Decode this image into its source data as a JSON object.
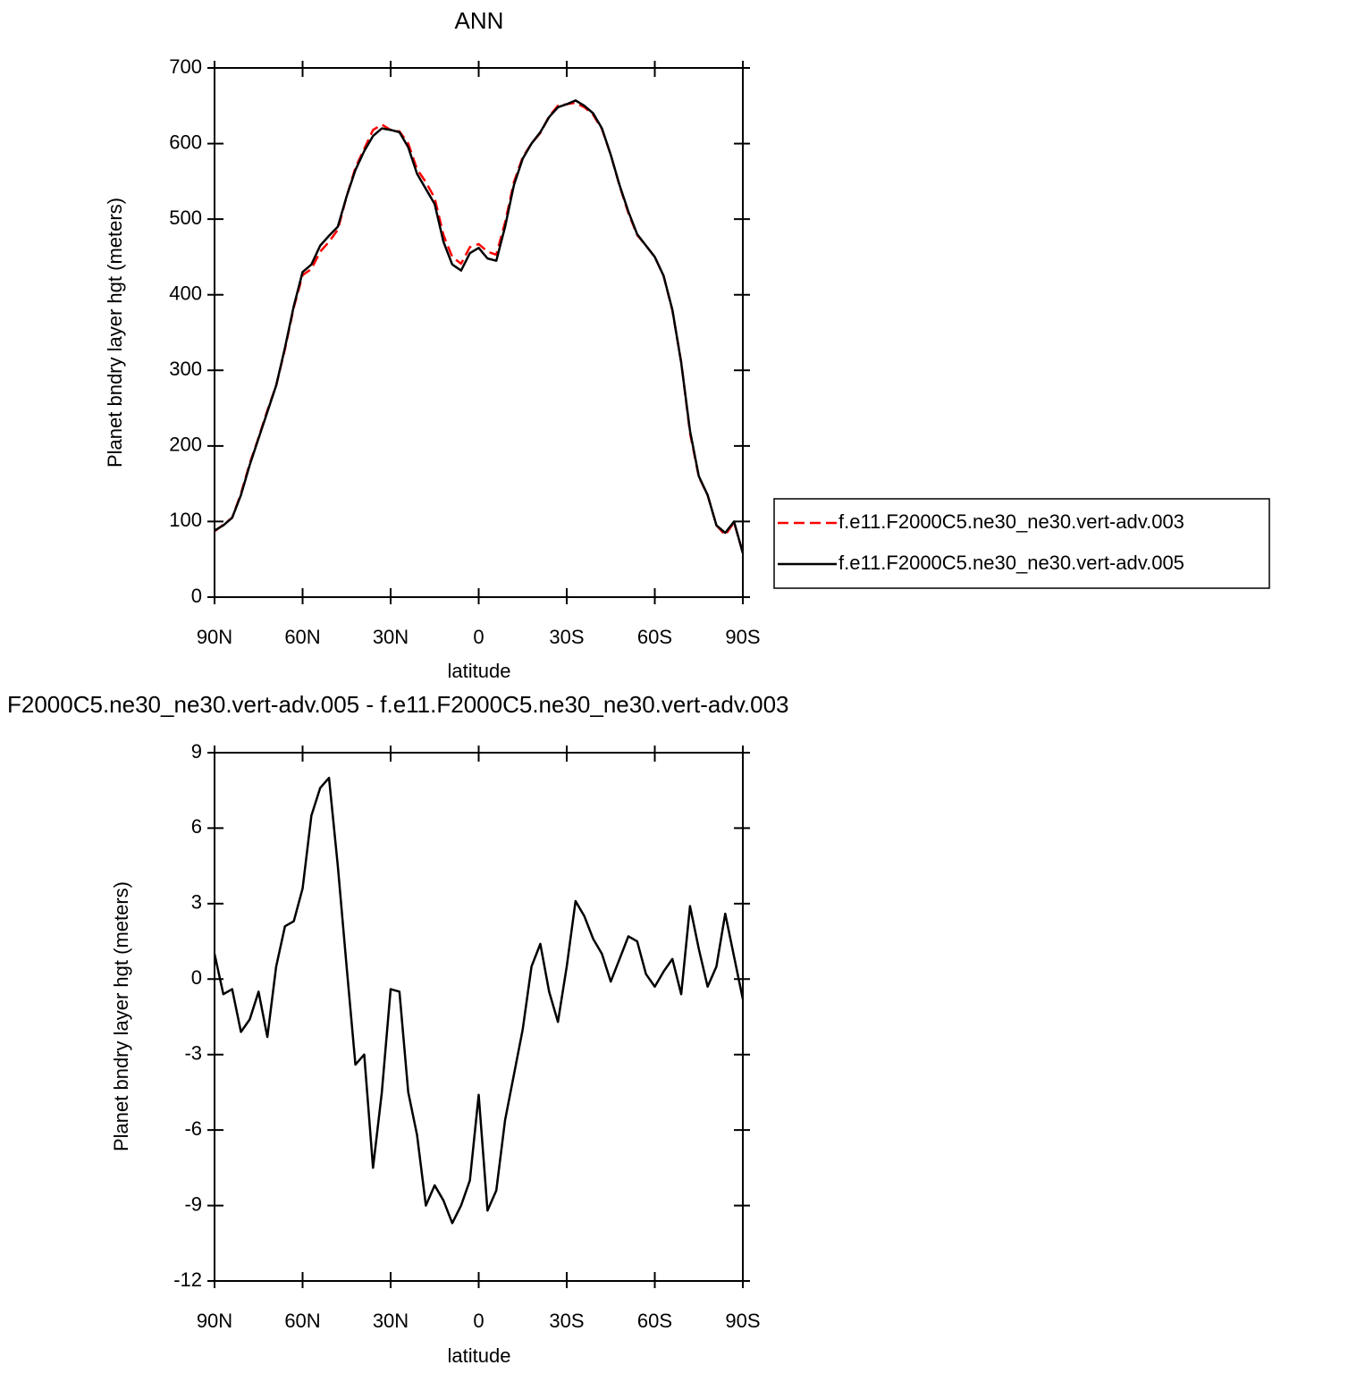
{
  "chart_data": [
    {
      "type": "line",
      "title": "ANN",
      "xlabel": "latitude",
      "ylabel": "Planet bndry layer hgt (meters)",
      "x": [
        90,
        87,
        84,
        81,
        78,
        75,
        72,
        69,
        66,
        63,
        60,
        57,
        54,
        51,
        48,
        45,
        42,
        39,
        36,
        33,
        30,
        27,
        24,
        21,
        18,
        15,
        12,
        9,
        6,
        3,
        0,
        -3,
        -6,
        -9,
        -12,
        -15,
        -18,
        -21,
        -24,
        -27,
        -30,
        -33,
        -36,
        -39,
        -42,
        -45,
        -48,
        -51,
        -54,
        -57,
        -60,
        -63,
        -66,
        -69,
        -72,
        -75,
        -78,
        -81,
        -84,
        -87,
        -90
      ],
      "xlim": [
        90,
        -90
      ],
      "xticks": [
        {
          "value": 90,
          "label": "90N"
        },
        {
          "value": 60,
          "label": "60N"
        },
        {
          "value": 30,
          "label": "30N"
        },
        0,
        {
          "value": -30,
          "label": "30S"
        },
        {
          "value": -60,
          "label": "60S"
        },
        {
          "value": -90,
          "label": "90S"
        }
      ],
      "ylim": [
        0,
        700
      ],
      "yticks": [
        0,
        100,
        200,
        300,
        400,
        500,
        600,
        700
      ],
      "legend": "right",
      "series": [
        {
          "name": "f.e11.F2000C5.ne30_ne30.vert-adv.003",
          "color": "#ff0000",
          "line_style": "dashed",
          "values": [
            87,
            96,
            105,
            137,
            177,
            211,
            247,
            280,
            328,
            383,
            426,
            434,
            457,
            470,
            486,
            530,
            568,
            593,
            618,
            625,
            618,
            616,
            600,
            566,
            549,
            528,
            479,
            450,
            441,
            463,
            467,
            457,
            453,
            496,
            549,
            582,
            600,
            614,
            636,
            650,
            652,
            654,
            648,
            638,
            619,
            585,
            544,
            508,
            479,
            465,
            450,
            425,
            379,
            311,
            217,
            159,
            135,
            95,
            82,
            99,
            59
          ]
        },
        {
          "name": "f.e11.F2000C5.ne30_ne30.vert-adv.005",
          "color": "#000000",
          "line_style": "solid",
          "values": [
            88,
            95,
            105,
            135,
            175,
            210,
            245,
            280,
            330,
            385,
            430,
            440,
            465,
            478,
            490,
            530,
            565,
            590,
            610,
            620,
            618,
            615,
            595,
            560,
            540,
            520,
            470,
            440,
            432,
            455,
            462,
            448,
            445,
            490,
            545,
            580,
            600,
            615,
            635,
            648,
            652,
            657,
            650,
            640,
            620,
            585,
            545,
            510,
            480,
            465,
            450,
            425,
            380,
            310,
            220,
            160,
            135,
            95,
            85,
            100,
            58
          ]
        }
      ]
    },
    {
      "type": "line",
      "title": "F2000C5.ne30_ne30.vert-adv.005 - f.e11.F2000C5.ne30_ne30.vert-adv.003",
      "xlabel": "latitude",
      "ylabel": "Planet bndry layer hgt (meters)",
      "x": [
        90,
        87,
        84,
        81,
        78,
        75,
        72,
        69,
        66,
        63,
        60,
        57,
        54,
        51,
        48,
        45,
        42,
        39,
        36,
        33,
        30,
        27,
        24,
        21,
        18,
        15,
        12,
        9,
        6,
        3,
        0,
        -3,
        -6,
        -9,
        -12,
        -15,
        -18,
        -21,
        -24,
        -27,
        -30,
        -33,
        -36,
        -39,
        -42,
        -45,
        -48,
        -51,
        -54,
        -57,
        -60,
        -63,
        -66,
        -69,
        -72,
        -75,
        -78,
        -81,
        -84,
        -87,
        -90
      ],
      "xlim": [
        90,
        -90
      ],
      "xticks": [
        {
          "value": 90,
          "label": "90N"
        },
        {
          "value": 60,
          "label": "60N"
        },
        {
          "value": 30,
          "label": "30N"
        },
        0,
        {
          "value": -30,
          "label": "30S"
        },
        {
          "value": -60,
          "label": "60S"
        },
        {
          "value": -90,
          "label": "90S"
        }
      ],
      "ylim": [
        -12,
        9
      ],
      "yticks": [
        -12,
        -9,
        -6,
        -3,
        0,
        3,
        6,
        9
      ],
      "series": [
        {
          "color": "#000000",
          "line_style": "solid",
          "values": [
            1.0,
            -0.6,
            -0.4,
            -2.1,
            -1.6,
            -0.5,
            -2.3,
            0.5,
            2.1,
            2.3,
            3.6,
            6.5,
            7.6,
            8.0,
            4.5,
            0.5,
            -3.4,
            -3.0,
            -7.5,
            -4.5,
            -0.4,
            -0.5,
            -4.5,
            -6.2,
            -9.0,
            -8.2,
            -8.8,
            -9.7,
            -9.0,
            -8.0,
            -4.6,
            -9.2,
            -8.4,
            -5.6,
            -3.8,
            -2.0,
            0.5,
            1.4,
            -0.5,
            -1.7,
            0.5,
            3.1,
            2.5,
            1.6,
            1.0,
            -0.1,
            0.8,
            1.7,
            1.5,
            0.2,
            -0.3,
            0.3,
            0.8,
            -0.6,
            2.9,
            1.2,
            -0.3,
            0.5,
            2.6,
            0.9,
            -0.8
          ]
        }
      ]
    }
  ]
}
